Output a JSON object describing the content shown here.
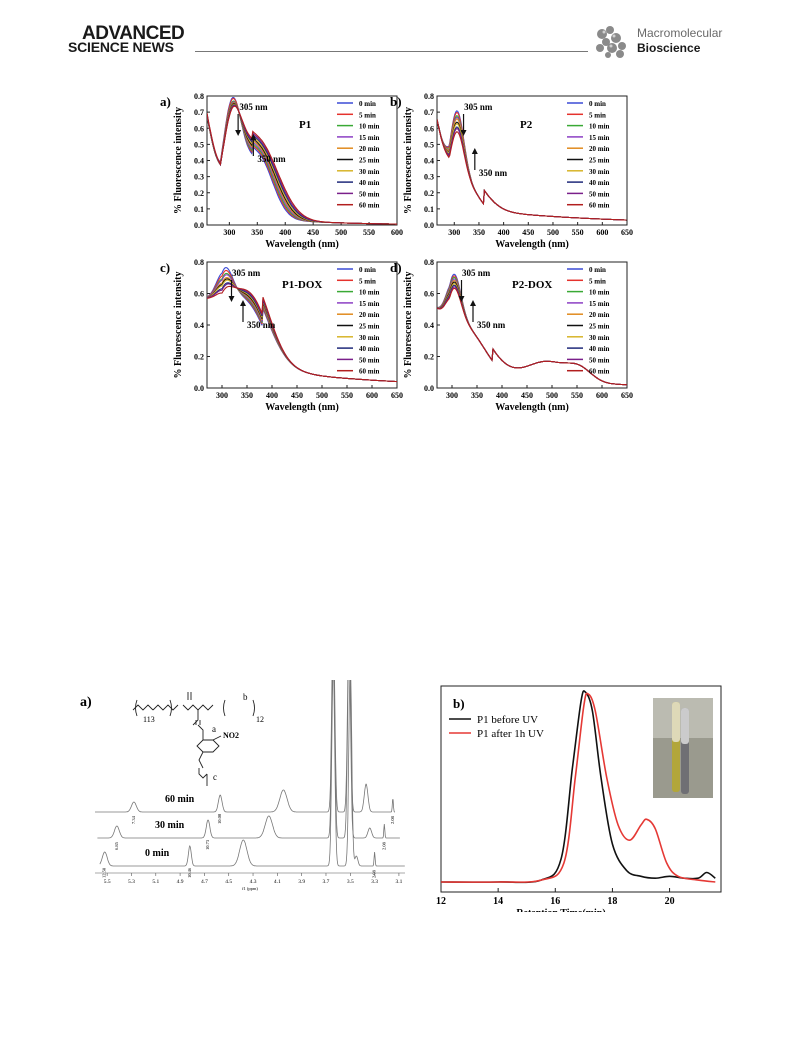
{
  "header": {
    "logo_line1": "ADVANCED",
    "logo_line2": "SCIENCE NEWS",
    "journal_line1": "Macromolecular",
    "journal_line2": "Bioscience",
    "journal_icon": "molecule-cluster-icon"
  },
  "figure_top": {
    "panels": [
      {
        "id": "a",
        "panel_label": "a)",
        "label": "P1",
        "annotation_305": "305 nm",
        "annotation_350": "350 nm"
      },
      {
        "id": "b",
        "panel_label": "b)",
        "label": "P2",
        "annotation_305": "305 nm",
        "annotation_350": "350 nm"
      },
      {
        "id": "c",
        "panel_label": "c)",
        "label": "P1-DOX",
        "annotation_305": "305 nm",
        "annotation_350": "350 nm"
      },
      {
        "id": "d",
        "panel_label": "d)",
        "label": "P2-DOX",
        "annotation_305": "305 nm",
        "annotation_350": "350 nm"
      }
    ],
    "legend": [
      "0 min",
      "5 min",
      "10 min",
      "15 min",
      "20 min",
      "25 min",
      "30 min",
      "40 min",
      "50 min",
      "60 min"
    ],
    "legend_colors": [
      "#3b4bd6",
      "#e5322d",
      "#39a935",
      "#8c3fc4",
      "#e08a1e",
      "#111111",
      "#d7b42a",
      "#1f2a7a",
      "#7a1f8a",
      "#b21e1e"
    ],
    "xlabel": "Wavelength (nm)",
    "ylabel": "% Fluorescence intensity"
  },
  "chart_data": [
    {
      "type": "line",
      "title": "P1",
      "panel": "a)",
      "xlabel": "Wavelength (nm)",
      "ylabel": "% Fluorescence intensity",
      "xlim": [
        260,
        600
      ],
      "ylim": [
        0.0,
        0.8
      ],
      "xticks": [
        300,
        350,
        400,
        450,
        500,
        550,
        600
      ],
      "yticks": [
        0.0,
        0.1,
        0.2,
        0.3,
        0.4,
        0.5,
        0.6,
        0.7,
        0.8
      ],
      "series_names": [
        "0 min",
        "5 min",
        "10 min",
        "15 min",
        "20 min",
        "25 min",
        "30 min",
        "40 min",
        "50 min",
        "60 min"
      ],
      "peak_305_values": [
        0.72,
        0.7,
        0.67,
        0.65,
        0.63,
        0.61,
        0.59,
        0.57,
        0.55,
        0.53
      ],
      "shoulder_350_values": [
        0.42,
        0.42,
        0.42,
        0.42,
        0.42,
        0.42,
        0.42,
        0.42,
        0.42,
        0.42
      ],
      "value_at_400": [
        0.08,
        0.09,
        0.1,
        0.11,
        0.12,
        0.13,
        0.14,
        0.15,
        0.16,
        0.17
      ]
    },
    {
      "type": "line",
      "title": "P2",
      "panel": "b)",
      "xlabel": "Wavelength (nm)",
      "ylabel": "% Fluorescence intensity",
      "xlim": [
        265,
        650
      ],
      "ylim": [
        0.0,
        0.8
      ],
      "xticks": [
        300,
        350,
        400,
        450,
        500,
        550,
        600,
        650
      ],
      "yticks": [
        0.0,
        0.1,
        0.2,
        0.3,
        0.4,
        0.5,
        0.6,
        0.7,
        0.8
      ],
      "series_names": [
        "0 min",
        "5 min",
        "10 min",
        "15 min",
        "20 min",
        "25 min",
        "30 min",
        "40 min",
        "50 min",
        "60 min"
      ],
      "peak_305_values": [
        0.71,
        0.7,
        0.68,
        0.67,
        0.66,
        0.64,
        0.63,
        0.61,
        0.6,
        0.58
      ],
      "value_at_400": [
        0.1,
        0.1,
        0.1,
        0.1,
        0.1,
        0.1,
        0.1,
        0.1,
        0.1,
        0.1
      ]
    },
    {
      "type": "line",
      "title": "P1-DOX",
      "panel": "c)",
      "xlabel": "Wavelength (nm)",
      "ylabel": "% Fluorescence intensity",
      "xlim": [
        270,
        650
      ],
      "ylim": [
        0.0,
        0.8
      ],
      "xticks": [
        300,
        350,
        400,
        450,
        500,
        550,
        600,
        650
      ],
      "yticks": [
        0.0,
        0.2,
        0.4,
        0.6,
        0.8
      ],
      "series_names": [
        "0 min",
        "5 min",
        "10 min",
        "15 min",
        "20 min",
        "25 min",
        "30 min",
        "40 min",
        "50 min",
        "60 min"
      ],
      "peak_305_values": [
        0.77,
        0.75,
        0.73,
        0.72,
        0.7,
        0.69,
        0.68,
        0.66,
        0.65,
        0.63
      ],
      "value_at_400": [
        0.18,
        0.19,
        0.2,
        0.21,
        0.22,
        0.23,
        0.24,
        0.25,
        0.26,
        0.27
      ]
    },
    {
      "type": "line",
      "title": "P2-DOX",
      "panel": "d)",
      "xlabel": "Wavelength (nm)",
      "ylabel": "% Fluorescence intensity",
      "xlim": [
        270,
        650
      ],
      "ylim": [
        0.0,
        0.8
      ],
      "xticks": [
        300,
        350,
        400,
        450,
        500,
        550,
        600,
        650
      ],
      "yticks": [
        0.0,
        0.2,
        0.4,
        0.6,
        0.8
      ],
      "series_names": [
        "0 min",
        "5 min",
        "10 min",
        "15 min",
        "20 min",
        "25 min",
        "30 min",
        "40 min",
        "50 min",
        "60 min"
      ],
      "peak_305_values": [
        0.74,
        0.73,
        0.72,
        0.71,
        0.7,
        0.69,
        0.68,
        0.67,
        0.66,
        0.65
      ],
      "value_at_400": [
        0.19,
        0.19,
        0.19,
        0.19,
        0.19,
        0.19,
        0.19,
        0.19,
        0.19,
        0.19
      ]
    },
    {
      "type": "line",
      "title": "",
      "panel": "b)",
      "xlabel": "Retention Time(min)",
      "ylabel": "",
      "xlim": [
        12,
        21.8
      ],
      "xticks": [
        12,
        14,
        16,
        18,
        20
      ],
      "series": [
        {
          "name": "P1 before UV",
          "color": "#111111",
          "x": [
            12,
            14,
            15.5,
            16.2,
            16.6,
            16.9,
            17.05,
            17.3,
            17.6,
            18.0,
            18.5,
            19.0,
            19.5,
            20.0,
            20.5,
            21.0,
            21.3,
            21.6
          ],
          "y": [
            0.0,
            0.0,
            0.01,
            0.12,
            0.6,
            0.95,
            1.0,
            0.9,
            0.55,
            0.2,
            0.06,
            0.03,
            0.02,
            0.03,
            0.02,
            0.02,
            0.05,
            0.02
          ]
        },
        {
          "name": "P1 after 1h UV",
          "color": "#e53935",
          "x": [
            12,
            14,
            15.5,
            16.3,
            16.7,
            17.0,
            17.15,
            17.4,
            17.8,
            18.2,
            18.6,
            19.0,
            19.2,
            19.5,
            19.9,
            20.3,
            21.0,
            21.6
          ],
          "y": [
            0.0,
            0.0,
            0.01,
            0.1,
            0.55,
            0.93,
            0.99,
            0.9,
            0.55,
            0.3,
            0.22,
            0.3,
            0.33,
            0.28,
            0.1,
            0.03,
            0.01,
            0.0
          ]
        }
      ]
    }
  ],
  "figure_bottom": {
    "nmr": {
      "panel_label": "a)",
      "spectra": [
        {
          "label": "60 min",
          "integrals": [
            "7.34",
            "10.00",
            "2.08"
          ]
        },
        {
          "label": "30 min",
          "integrals": [
            "6.85",
            "10.73",
            "2.08"
          ]
        },
        {
          "label": "0 min",
          "integrals": [
            "12.58",
            "10.46",
            "2.08"
          ]
        }
      ],
      "xticks": [
        "5.5",
        "5.3",
        "5.1",
        "4.9",
        "4.7",
        "4.5",
        "4.3",
        "4.1",
        "3.9",
        "3.7",
        "3.5",
        "3.3",
        "3.1"
      ],
      "xlabel": "f1 (ppm)",
      "structure_labels": {
        "repeat1": "113",
        "repeat2": "12",
        "no2": "NO2",
        "a": "a",
        "b": "b",
        "c": "c"
      }
    },
    "gpc": {
      "panel_label": "b)",
      "legend": [
        "P1 before UV",
        "P1 after 1h UV"
      ],
      "xlabel": "Retention Time(min)",
      "xticks": [
        "12",
        "14",
        "16",
        "18",
        "20"
      ]
    }
  }
}
